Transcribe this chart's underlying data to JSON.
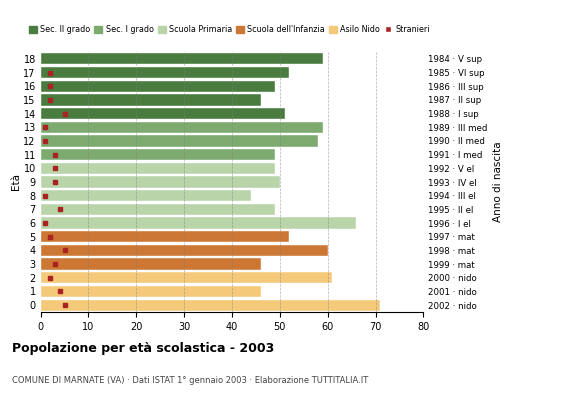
{
  "ages": [
    18,
    17,
    16,
    15,
    14,
    13,
    12,
    11,
    10,
    9,
    8,
    7,
    6,
    5,
    4,
    3,
    2,
    1,
    0
  ],
  "bar_values": [
    59,
    52,
    49,
    46,
    51,
    59,
    58,
    49,
    49,
    50,
    44,
    49,
    66,
    52,
    60,
    46,
    61,
    46,
    71
  ],
  "stranieri_values": [
    0,
    2,
    2,
    2,
    5,
    1,
    1,
    3,
    3,
    3,
    1,
    4,
    1,
    2,
    5,
    3,
    2,
    4,
    5
  ],
  "right_labels": [
    "1984 · V sup",
    "1985 · VI sup",
    "1986 · III sup",
    "1987 · II sup",
    "1988 · I sup",
    "1989 · III med",
    "1990 · II med",
    "1991 · I med",
    "1992 · V el",
    "1993 · IV el",
    "1994 · III el",
    "1995 · II el",
    "1996 · I el",
    "1997 · mat",
    "1998 · mat",
    "1999 · mat",
    "2000 · nido",
    "2001 · nido",
    "2002 · nido"
  ],
  "colors": {
    "sec2": "#4a7c3f",
    "sec1": "#7daa6e",
    "primaria": "#b8d4a8",
    "infanzia": "#cc7733",
    "nido": "#f5c97a",
    "stranieri": "#aa2222"
  },
  "bar_colors": [
    "#4a7c3f",
    "#4a7c3f",
    "#4a7c3f",
    "#4a7c3f",
    "#4a7c3f",
    "#7daa6e",
    "#7daa6e",
    "#7daa6e",
    "#b8d4a8",
    "#b8d4a8",
    "#b8d4a8",
    "#b8d4a8",
    "#b8d4a8",
    "#cc7733",
    "#cc7733",
    "#cc7733",
    "#f5c97a",
    "#f5c97a",
    "#f5c97a"
  ],
  "title": "Popolazione per età scolastica - 2003",
  "subtitle": "COMUNE DI MARNATE (VA) · Dati ISTAT 1° gennaio 2003 · Elaborazione TUTTITALIA.IT",
  "ylabel_left": "Età",
  "ylabel_right": "Anno di nascita",
  "xlim": [
    0,
    80
  ],
  "xticks": [
    0,
    10,
    20,
    30,
    40,
    50,
    60,
    70,
    80
  ],
  "legend_labels": [
    "Sec. II grado",
    "Sec. I grado",
    "Scuola Primaria",
    "Scuola dell'Infanzia",
    "Asilo Nido",
    "Stranieri"
  ],
  "legend_colors": [
    "#4a7c3f",
    "#7daa6e",
    "#b8d4a8",
    "#cc7733",
    "#f5c97a",
    "#aa2222"
  ]
}
